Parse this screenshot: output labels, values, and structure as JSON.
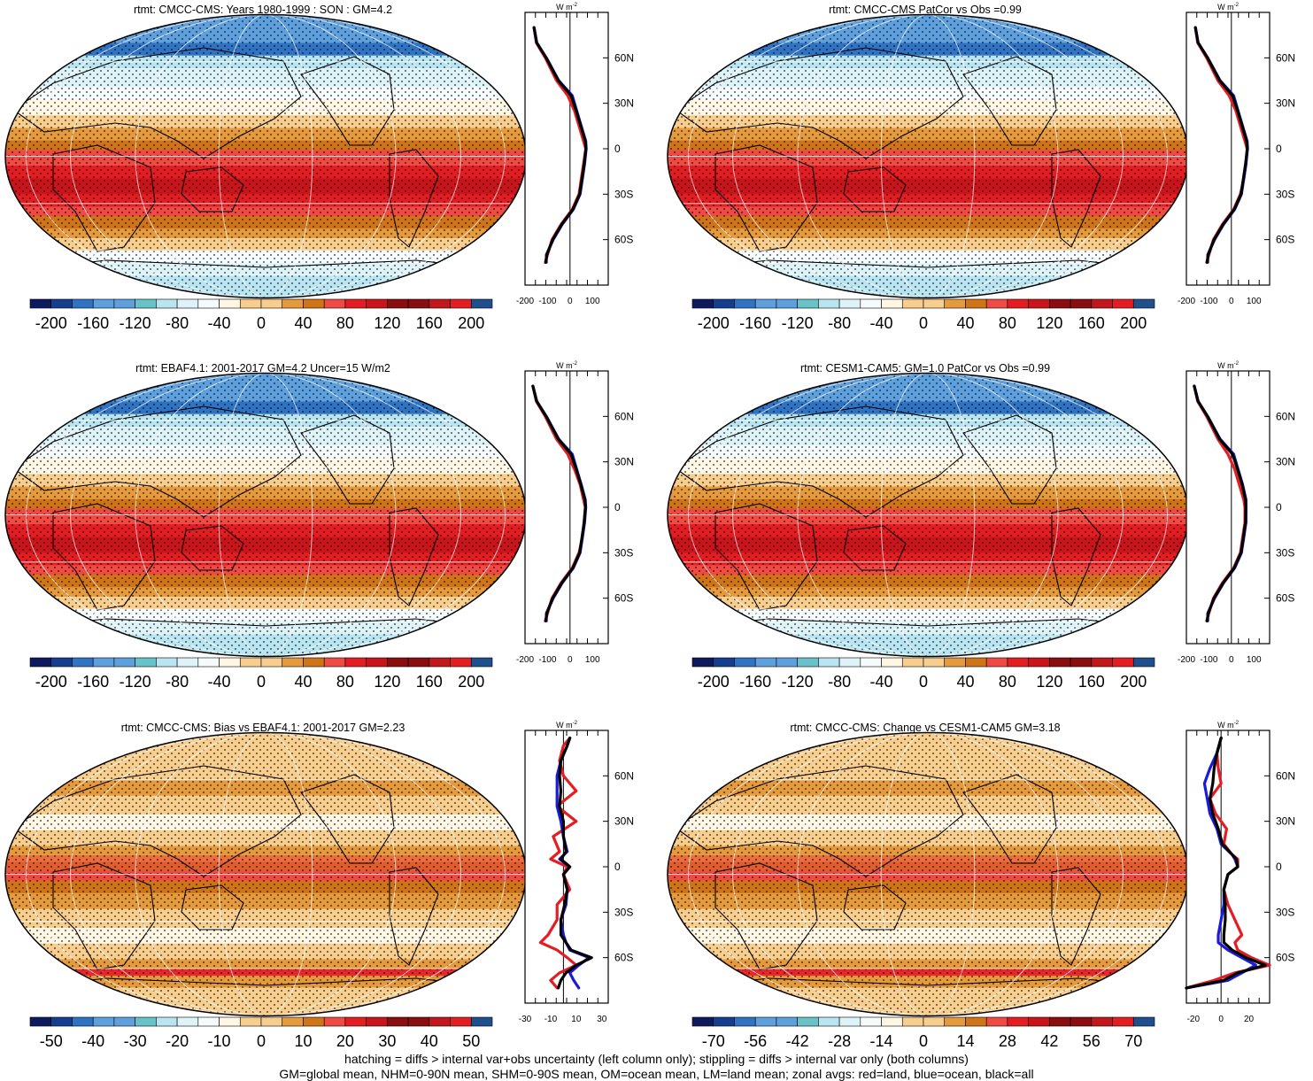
{
  "palette": [
    "#0d1a5e",
    "#153f8e",
    "#2f73c2",
    "#5ea0de",
    "#68c3c8",
    "#b8e5f1",
    "#ddf3f8",
    "#f5fbfc",
    "#fff6e3",
    "#f8ce8f",
    "#e69a3e",
    "#d07418",
    "#ef4b44",
    "#e41d23",
    "#c8141a",
    "#8a0d0f",
    "#c0181d",
    "#e41d23",
    "#1f4f8c"
  ],
  "chart_data": [
    {
      "type": "heatmap",
      "title": "rtmt: CMCC-CMS: Years 1980-1999 : SON : GM=4.2",
      "colorbar_labels": [
        "-200",
        "-160",
        "-120",
        "-80",
        "-40",
        "0",
        "40",
        "80",
        "120",
        "160",
        "200"
      ],
      "zonal": {
        "unit": "W m",
        "unit_exp": "-2",
        "xticks": [
          "-200",
          "-100",
          "0",
          "100"
        ],
        "xlim": [
          -200,
          170
        ],
        "lat_ticks": [
          "60N",
          "30N",
          "0",
          "30S",
          "60S"
        ],
        "lat_values": [
          60,
          30,
          0,
          -30,
          -60
        ],
        "latitudes": [
          80,
          70,
          60,
          45,
          35,
          25,
          15,
          5,
          0,
          -10,
          -20,
          -30,
          -40,
          -50,
          -60,
          -70,
          -75
        ],
        "series": [
          {
            "name": "land",
            "color": "#e41d23",
            "values": [
              -160,
              -150,
              -110,
              -60,
              -10,
              20,
              40,
              60,
              70,
              60,
              50,
              40,
              10,
              -40,
              -80,
              -100,
              -110
            ]
          },
          {
            "name": "ocean",
            "color": "#1a1adb",
            "values": [
              -160,
              -148,
              -105,
              -50,
              10,
              30,
              50,
              70,
              72,
              65,
              55,
              45,
              15,
              -35,
              -75,
              -105,
              -105
            ]
          },
          {
            "name": "all",
            "color": "#000000",
            "values": [
              -160,
              -148,
              -106,
              -52,
              5,
              28,
              48,
              68,
              71,
              63,
              53,
              43,
              13,
              -37,
              -77,
              -103,
              -108
            ]
          }
        ]
      }
    },
    {
      "type": "heatmap",
      "title": "rtmt: CMCC-CMS PatCor vs Obs =0.99",
      "colorbar_labels": [
        "-200",
        "-160",
        "-120",
        "-80",
        "-40",
        "0",
        "40",
        "80",
        "120",
        "160",
        "200"
      ],
      "zonal": {
        "unit": "W m",
        "unit_exp": "-2",
        "xticks": [
          "-200",
          "-100",
          "0",
          "100"
        ],
        "xlim": [
          -200,
          170
        ],
        "lat_ticks": [
          "60N",
          "30N",
          "0",
          "30S",
          "60S"
        ],
        "lat_values": [
          60,
          30,
          0,
          -30,
          -60
        ],
        "latitudes": [
          80,
          70,
          60,
          45,
          35,
          25,
          15,
          5,
          0,
          -10,
          -20,
          -30,
          -40,
          -50,
          -60,
          -70,
          -75
        ],
        "series": [
          {
            "name": "land",
            "color": "#e41d23",
            "values": [
              -160,
              -150,
              -110,
              -60,
              -10,
              20,
              40,
              60,
              70,
              65,
              55,
              40,
              10,
              -40,
              -80,
              -100,
              -110
            ]
          },
          {
            "name": "ocean",
            "color": "#1a1adb",
            "values": [
              -160,
              -148,
              -105,
              -50,
              10,
              30,
              50,
              70,
              72,
              65,
              55,
              45,
              15,
              -35,
              -75,
              -105,
              -105
            ]
          },
          {
            "name": "all",
            "color": "#000000",
            "values": [
              -160,
              -148,
              -106,
              -52,
              5,
              28,
              48,
              68,
              71,
              63,
              53,
              43,
              13,
              -37,
              -77,
              -103,
              -108
            ]
          }
        ]
      }
    },
    {
      "type": "heatmap",
      "title": "rtmt: EBAF4.1: 2001-2017 GM=4.2 Uncer=15 W/m2",
      "colorbar_labels": [
        "-200",
        "-160",
        "-120",
        "-80",
        "-40",
        "0",
        "40",
        "80",
        "120",
        "160",
        "200"
      ],
      "zonal": {
        "unit": "W m",
        "unit_exp": "-2",
        "xticks": [
          "-200",
          "-100",
          "0",
          "100"
        ],
        "xlim": [
          -200,
          170
        ],
        "lat_ticks": [
          "60N",
          "30N",
          "0",
          "30S",
          "60S"
        ],
        "lat_values": [
          60,
          30,
          0,
          -30,
          -60
        ],
        "latitudes": [
          80,
          70,
          60,
          45,
          35,
          25,
          15,
          5,
          0,
          -10,
          -20,
          -30,
          -40,
          -50,
          -60,
          -70,
          -75
        ],
        "series": [
          {
            "name": "land",
            "color": "#e41d23",
            "values": [
              -165,
              -150,
              -110,
              -60,
              -10,
              20,
              45,
              60,
              68,
              62,
              55,
              40,
              10,
              -40,
              -80,
              -100,
              -110
            ]
          },
          {
            "name": "ocean",
            "color": "#1a1adb",
            "values": [
              -165,
              -148,
              -105,
              -50,
              10,
              30,
              50,
              68,
              70,
              65,
              55,
              45,
              15,
              -35,
              -75,
              -105,
              -105
            ]
          },
          {
            "name": "all",
            "color": "#000000",
            "values": [
              -165,
              -148,
              -106,
              -52,
              5,
              28,
              48,
              66,
              69,
              63,
              53,
              43,
              13,
              -37,
              -77,
              -103,
              -108
            ]
          }
        ]
      }
    },
    {
      "type": "heatmap",
      "title": "rtmt: CESM1-CAM5: GM=1.0 PatCor vs Obs =0.99",
      "colorbar_labels": [
        "-200",
        "-160",
        "-120",
        "-80",
        "-40",
        "0",
        "40",
        "80",
        "120",
        "160",
        "200"
      ],
      "zonal": {
        "unit": "W m",
        "unit_exp": "-2",
        "xticks": [
          "-200",
          "-100",
          "0",
          "100"
        ],
        "xlim": [
          -200,
          170
        ],
        "lat_ticks": [
          "60N",
          "30N",
          "0",
          "30S",
          "60S"
        ],
        "lat_values": [
          60,
          30,
          0,
          -30,
          -60
        ],
        "latitudes": [
          80,
          70,
          60,
          45,
          35,
          25,
          15,
          5,
          0,
          -10,
          -20,
          -30,
          -40,
          -50,
          -60,
          -70,
          -75
        ],
        "series": [
          {
            "name": "land",
            "color": "#e41d23",
            "values": [
              -165,
              -150,
              -110,
              -60,
              -15,
              15,
              35,
              55,
              60,
              60,
              50,
              40,
              10,
              -40,
              -80,
              -100,
              -110
            ]
          },
          {
            "name": "ocean",
            "color": "#1a1adb",
            "values": [
              -165,
              -148,
              -105,
              -50,
              10,
              30,
              50,
              65,
              65,
              65,
              55,
              45,
              15,
              -35,
              -75,
              -105,
              -105
            ]
          },
          {
            "name": "all",
            "color": "#000000",
            "values": [
              -165,
              -148,
              -106,
              -52,
              5,
              28,
              48,
              63,
              64,
              63,
              53,
              43,
              13,
              -37,
              -77,
              -103,
              -108
            ]
          }
        ]
      }
    },
    {
      "type": "heatmap",
      "title": "rtmt: CMCC-CMS: Bias vs EBAF4.1: 2001-2017  GM=2.23",
      "colorbar_labels": [
        "-50",
        "-40",
        "-30",
        "-20",
        "-10",
        "0",
        "10",
        "20",
        "30",
        "40",
        "50"
      ],
      "zonal": {
        "unit": "W m",
        "unit_exp": "-2",
        "xticks": [
          "-30",
          "-10",
          "10",
          "30"
        ],
        "xlim": [
          -30,
          35
        ],
        "lat_ticks": [
          "60N",
          "30N",
          "0",
          "30S",
          "60S"
        ],
        "lat_values": [
          60,
          30,
          0,
          -30,
          -60
        ],
        "latitudes": [
          85,
          80,
          70,
          60,
          50,
          40,
          30,
          20,
          10,
          5,
          0,
          -5,
          -15,
          -25,
          -35,
          -45,
          -50,
          -55,
          -60,
          -65,
          -70,
          -75,
          -80
        ],
        "series": [
          {
            "name": "land",
            "color": "#e41d23",
            "values": [
              5,
              0,
              -3,
              0,
              10,
              -5,
              10,
              -8,
              -3,
              -10,
              3,
              0,
              5,
              -5,
              -5,
              -12,
              -18,
              -5,
              3,
              10,
              -3,
              -10,
              -5
            ]
          },
          {
            "name": "ocean",
            "color": "#1a1adb",
            "values": [
              5,
              3,
              -2,
              -5,
              -5,
              -5,
              -2,
              0,
              3,
              -3,
              5,
              0,
              3,
              2,
              -2,
              0,
              2,
              5,
              20,
              12,
              5,
              8,
              12
            ]
          },
          {
            "name": "all",
            "color": "#000000",
            "values": [
              5,
              3,
              -2,
              -3,
              -2,
              -3,
              0,
              0,
              2,
              -2,
              5,
              0,
              3,
              1,
              -2,
              -2,
              2,
              6,
              22,
              10,
              2,
              -2,
              -4
            ]
          }
        ]
      }
    },
    {
      "type": "heatmap",
      "title": "rtmt: CMCC-CMS: Change vs CESM1-CAM5 GM=3.18",
      "colorbar_labels": [
        "-70",
        "-56",
        "-42",
        "-28",
        "-14",
        "0",
        "14",
        "28",
        "42",
        "56",
        "70"
      ],
      "zonal": {
        "unit": "W m",
        "unit_exp": "-2",
        "xticks": [
          "-20",
          "0",
          "20"
        ],
        "xlim": [
          -25,
          35
        ],
        "lat_ticks": [
          "60N",
          "30N",
          "0",
          "30S",
          "60S"
        ],
        "lat_values": [
          60,
          30,
          0,
          -30,
          -60
        ],
        "latitudes": [
          85,
          75,
          65,
          55,
          45,
          35,
          25,
          15,
          8,
          5,
          0,
          -5,
          -15,
          -25,
          -35,
          -45,
          -50,
          -55,
          -60,
          -65,
          -70,
          -75,
          -80
        ],
        "series": [
          {
            "name": "land",
            "color": "#e41d23",
            "values": [
              0,
              -3,
              -2,
              0,
              -8,
              -4,
              4,
              2,
              8,
              12,
              12,
              5,
              2,
              5,
              10,
              15,
              10,
              12,
              22,
              35,
              10,
              -5,
              -25
            ]
          },
          {
            "name": "ocean",
            "color": "#1a1adb",
            "values": [
              0,
              -3,
              -8,
              -12,
              -10,
              -8,
              -3,
              0,
              8,
              10,
              12,
              5,
              2,
              2,
              0,
              -2,
              -2,
              5,
              15,
              25,
              15,
              5,
              -25
            ]
          },
          {
            "name": "all",
            "color": "#000000",
            "values": [
              0,
              -3,
              -5,
              -6,
              -8,
              -6,
              -2,
              1,
              8,
              11,
              12,
              5,
              2,
              3,
              3,
              2,
              2,
              8,
              18,
              32,
              12,
              2,
              -25
            ]
          }
        ]
      }
    }
  ],
  "footnote": {
    "line1": "hatching = diffs > internal var+obs uncertainty (left column only); stippling = diffs > internal var only (both columns)",
    "line2": "GM=global mean, NHM=0-90N mean, SHM=0-90S mean, OM=ocean mean, LM=land mean; zonal avgs: red=land, blue=ocean, black=all"
  }
}
